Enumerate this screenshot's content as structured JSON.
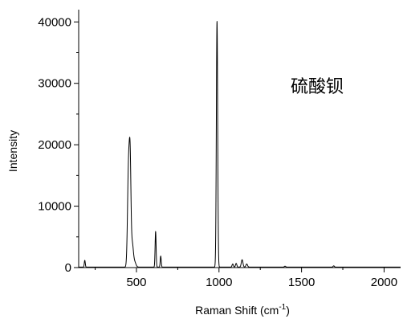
{
  "chart_data": {
    "type": "line",
    "title": "",
    "annotation": "硫酸钡",
    "xlabel": "Raman Shift (cm",
    "xlabel_sup": "-1",
    "xlabel_close": ")",
    "ylabel": "Intensity",
    "xlim": [
      150,
      2100
    ],
    "ylim": [
      0,
      42000
    ],
    "xticks": [
      500,
      1000,
      1500,
      2000
    ],
    "xtick_labels": [
      "500",
      "1000",
      "1500",
      "2000"
    ],
    "yticks": [
      0,
      10000,
      20000,
      30000,
      40000
    ],
    "ytick_labels": [
      "0",
      "10000",
      "20000",
      "30000",
      "40000"
    ],
    "grid": false,
    "series": [
      {
        "line_color": "#000000",
        "peaks": [
          {
            "x": 187,
            "y": 1100,
            "width": 3
          },
          {
            "x": 452,
            "y": 16000,
            "width": 6
          },
          {
            "x": 462,
            "y": 15500,
            "width": 5
          },
          {
            "x": 475,
            "y": 3500,
            "width": 6
          },
          {
            "x": 488,
            "y": 900,
            "width": 8
          },
          {
            "x": 616,
            "y": 5800,
            "width": 3
          },
          {
            "x": 647,
            "y": 1800,
            "width": 3
          },
          {
            "x": 988,
            "y": 40000,
            "width": 4
          },
          {
            "x": 1083,
            "y": 500,
            "width": 4
          },
          {
            "x": 1104,
            "y": 600,
            "width": 4
          },
          {
            "x": 1140,
            "y": 1200,
            "width": 5
          },
          {
            "x": 1168,
            "y": 500,
            "width": 5
          },
          {
            "x": 1400,
            "y": 150,
            "width": 4
          },
          {
            "x": 1695,
            "y": 200,
            "width": 4
          }
        ],
        "baseline": 80
      }
    ]
  }
}
